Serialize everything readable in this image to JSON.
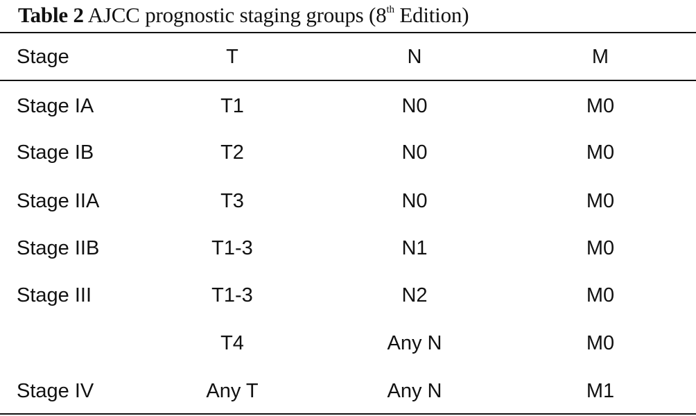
{
  "caption": {
    "label": "Table 2",
    "text_before_sup": "AJCC prognostic staging groups (8",
    "superscript": "th",
    "text_after_sup": " Edition)"
  },
  "table": {
    "headers": [
      "Stage",
      "T",
      "N",
      "M"
    ],
    "rows": [
      [
        "Stage IA",
        "T1",
        "N0",
        "M0"
      ],
      [
        "Stage IB",
        "T2",
        "N0",
        "M0"
      ],
      [
        "Stage IIA",
        "T3",
        "N0",
        "M0"
      ],
      [
        "Stage IIB",
        "T1-3",
        "N1",
        "M0"
      ],
      [
        "Stage III",
        "T1-3",
        "N2",
        "M0"
      ],
      [
        "",
        "T4",
        "Any N",
        "M0"
      ],
      [
        "Stage IV",
        "Any T",
        "Any N",
        "M1"
      ]
    ]
  }
}
